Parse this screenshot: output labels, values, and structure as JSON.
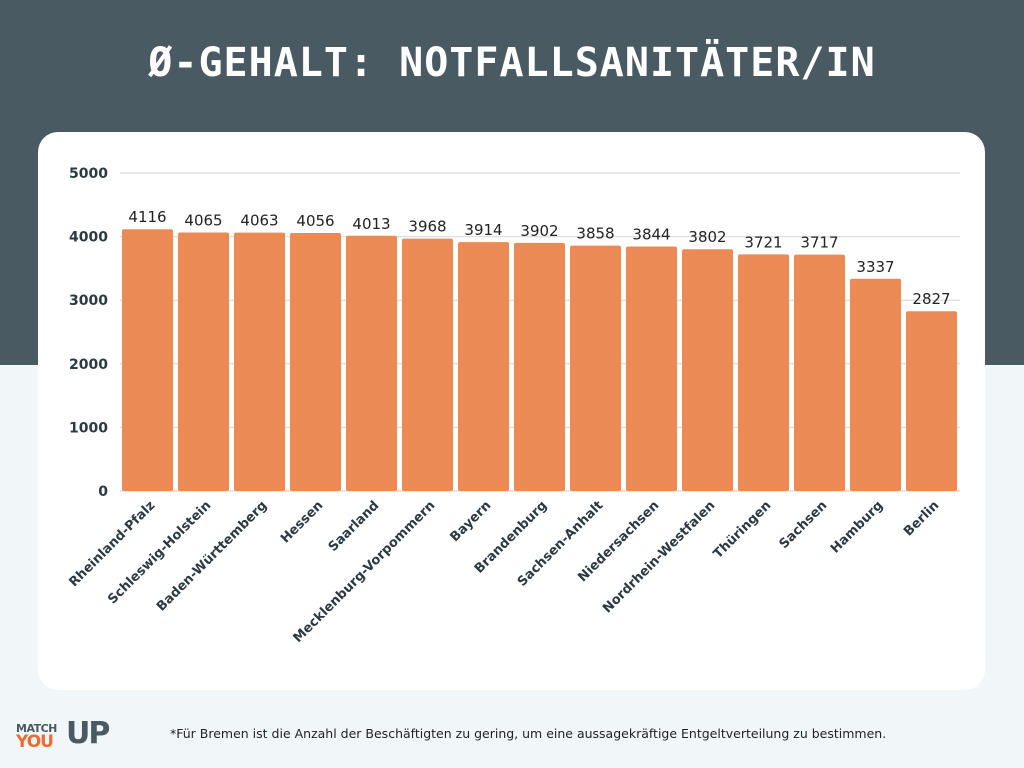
{
  "title": "Ø-GEHALT: NOTFALLSANITÄTER/IN",
  "footnote": "*Für Bremen ist die Anzahl der Beschäftigten zu gering, um eine aussagekräftige Entgeltverteilung zu bestimmen.",
  "logo": {
    "line1": "MATCH",
    "line2": "YOU",
    "line3": "UP"
  },
  "colors": {
    "bar": "#ec8a55",
    "header": "#4a5a63",
    "logo_orange": "#ee6a2e"
  },
  "chart_data": {
    "type": "bar",
    "categories": [
      "Rheinland-Pfalz",
      "Schleswig-Holstein",
      "Baden-Württemberg",
      "Hessen",
      "Saarland",
      "Mecklenburg-Vorpommern",
      "Bayern",
      "Brandenburg",
      "Sachsen-Anhalt",
      "Niedersachsen",
      "Nordrhein-Westfalen",
      "Thüringen",
      "Sachsen",
      "Hamburg",
      "Berlin"
    ],
    "values": [
      4116,
      4065,
      4063,
      4056,
      4013,
      3968,
      3914,
      3902,
      3858,
      3844,
      3802,
      3721,
      3717,
      3337,
      2827
    ],
    "ylim": [
      0,
      5000
    ],
    "yticks": [
      0,
      1000,
      2000,
      3000,
      4000,
      5000
    ],
    "grid": true,
    "data_labels": true
  }
}
